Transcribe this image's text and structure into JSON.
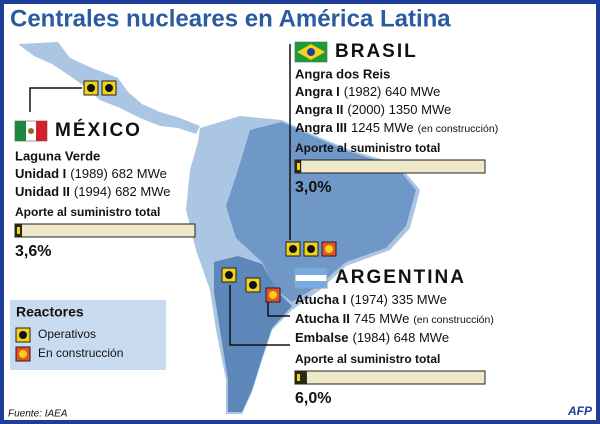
{
  "title": "Centrales nucleares en América Latina",
  "countries": [
    {
      "name": "MÉXICO",
      "site": "Laguna Verde",
      "reactors": [
        {
          "name": "Unidad I",
          "detail": "(1989) 682 MWe"
        },
        {
          "name": "Unidad II",
          "detail": "(1994) 682 MWe"
        }
      ],
      "share_caption": "Aporte al suministro total",
      "share": {
        "value": 3.6,
        "label": "3,6%"
      }
    },
    {
      "name": "BRASIL",
      "site": "Angra dos Reis",
      "reactors": [
        {
          "name": "Angra I",
          "detail": "(1982) 640 MWe"
        },
        {
          "name": "Angra II",
          "detail": "(2000) 1350 MWe"
        },
        {
          "name": "Angra III",
          "detail": "1245 MWe",
          "note": "(en construcción)"
        }
      ],
      "share_caption": "Aporte al suministro total",
      "share": {
        "value": 3.0,
        "label": "3,0%"
      }
    },
    {
      "name": "ARGENTINA",
      "reactors": [
        {
          "name": "Atucha I",
          "detail": "(1974) 335 MWe"
        },
        {
          "name": "Atucha II",
          "detail": "745 MWe",
          "note": "(en construcción)"
        },
        {
          "name": "Embalse",
          "detail": "(1984) 648 MWe"
        }
      ],
      "share_caption": "Aporte al suministro total",
      "share": {
        "value": 6.0,
        "label": "6,0%"
      }
    }
  ],
  "legend": {
    "title": "Reactores",
    "items": [
      "Operativos",
      "En construcción"
    ]
  },
  "source": "Fuente: IAEA",
  "credit": "AFP"
}
